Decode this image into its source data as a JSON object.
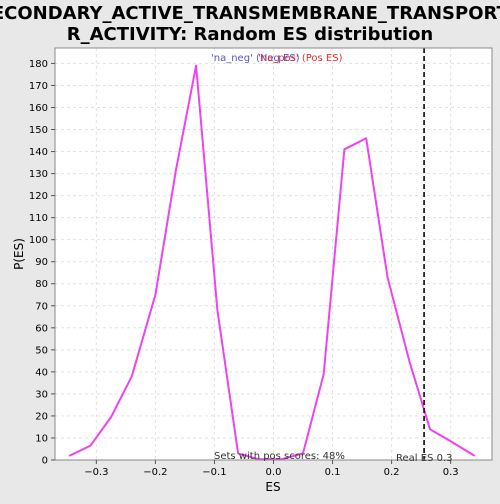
{
  "chart_data": {
    "type": "line",
    "title_lines": [
      "SECONDARY_ACTIVE_TRANSMEMBRANE_TRANSPORTE",
      "R_ACTIVITY: Random ES distribution"
    ],
    "xlabel": "ES",
    "ylabel": "P(ES)",
    "xlim": [
      -0.37,
      0.37
    ],
    "ylim": [
      0,
      187
    ],
    "xticks": [
      -0.3,
      -0.2,
      -0.1,
      0.0,
      0.1,
      0.2,
      0.3
    ],
    "xtick_labels": [
      "−0.3",
      "−0.2",
      "−0.1",
      "0.0",
      "0.1",
      "0.2",
      "0.3"
    ],
    "yticks": [
      0,
      10,
      20,
      30,
      40,
      50,
      60,
      70,
      80,
      90,
      100,
      110,
      120,
      130,
      140,
      150,
      160,
      170,
      180
    ],
    "grid": true,
    "series": [
      {
        "color": "#ee44ee",
        "x": [
          -0.345,
          -0.31,
          -0.275,
          -0.24,
          -0.2,
          -0.165,
          -0.131,
          -0.095,
          -0.06,
          -0.025,
          0.013,
          0.05,
          0.085,
          0.12,
          0.157,
          0.193,
          0.23,
          0.265,
          0.3,
          0.34
        ],
        "values": [
          2,
          6.5,
          19.5,
          38,
          75,
          132,
          179,
          68,
          3,
          0.3,
          0.3,
          3,
          39,
          141,
          146,
          83,
          45,
          14,
          8.5,
          2
        ]
      }
    ],
    "real_es": {
      "value": 0.255,
      "label": "Real ES 0.3"
    },
    "legend": {
      "neg_label": "'na_neg' (Neg ES)",
      "pos_label": "'na_pos' (Pos ES)",
      "neg_color": "#5555cc",
      "pos_color": "#dd3333"
    },
    "annotation": "Sets with pos scores: 48%"
  }
}
